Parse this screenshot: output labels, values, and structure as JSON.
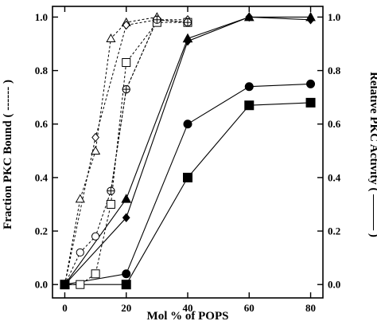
{
  "chart_data": {
    "type": "scatter",
    "title": "",
    "xlabel": "Mol % of  POPS",
    "ylabel_left": "Fraction PKC Bound  ( ------ )",
    "ylabel_right": "Relative PKC Activity  ( ——— )",
    "xlim": [
      -4,
      84
    ],
    "ylim": [
      -0.05,
      1.04
    ],
    "x_ticks": [
      0,
      20,
      40,
      60,
      80
    ],
    "y_ticks": [
      0.0,
      0.2,
      0.4,
      0.6,
      0.8,
      1.0
    ],
    "y_tick_labels": [
      "0.0",
      "0.2",
      "0.4",
      "0.6",
      "0.8",
      "1.0"
    ],
    "grid": false,
    "legend": "none",
    "series": [
      {
        "marker": "open-triangle",
        "line": "dashed",
        "x": [
          0,
          5,
          10,
          15,
          20,
          30
        ],
        "y": [
          0.0,
          0.32,
          0.5,
          0.92,
          0.98,
          1.0
        ]
      },
      {
        "marker": "open-diamond",
        "line": "dashed",
        "x": [
          0,
          10,
          20,
          30,
          40
        ],
        "y": [
          0.0,
          0.55,
          0.97,
          0.99,
          0.99
        ]
      },
      {
        "marker": "open-circle",
        "line": "dashed",
        "x": [
          0,
          5,
          10,
          15,
          20,
          30,
          40
        ],
        "y": [
          0.0,
          0.12,
          0.18,
          0.35,
          0.73,
          0.99,
          0.98
        ]
      },
      {
        "marker": "open-square",
        "line": "dashed",
        "x": [
          0,
          5,
          10,
          15,
          20,
          30,
          40
        ],
        "y": [
          0.0,
          0.0,
          0.04,
          0.3,
          0.83,
          0.98,
          0.98
        ]
      },
      {
        "marker": "open-circle-cross",
        "line": "dashed",
        "x": [
          15,
          20,
          30,
          40
        ],
        "y": [
          0.35,
          0.73,
          0.99,
          0.98
        ]
      },
      {
        "marker": "filled-triangle",
        "line": "solid",
        "x": [
          0,
          20,
          40,
          60,
          80
        ],
        "y": [
          0.0,
          0.32,
          0.92,
          1.0,
          1.0
        ]
      },
      {
        "marker": "filled-diamond",
        "line": "solid",
        "x": [
          0,
          20,
          40,
          60,
          80
        ],
        "y": [
          0.0,
          0.25,
          0.91,
          1.0,
          0.99
        ]
      },
      {
        "marker": "filled-circle",
        "line": "solid",
        "x": [
          0,
          20,
          40,
          60,
          80
        ],
        "y": [
          0.0,
          0.04,
          0.6,
          0.74,
          0.75
        ]
      },
      {
        "marker": "filled-square",
        "line": "solid",
        "x": [
          0,
          20,
          40,
          60,
          80
        ],
        "y": [
          0.0,
          0.0,
          0.4,
          0.67,
          0.68
        ]
      }
    ]
  }
}
